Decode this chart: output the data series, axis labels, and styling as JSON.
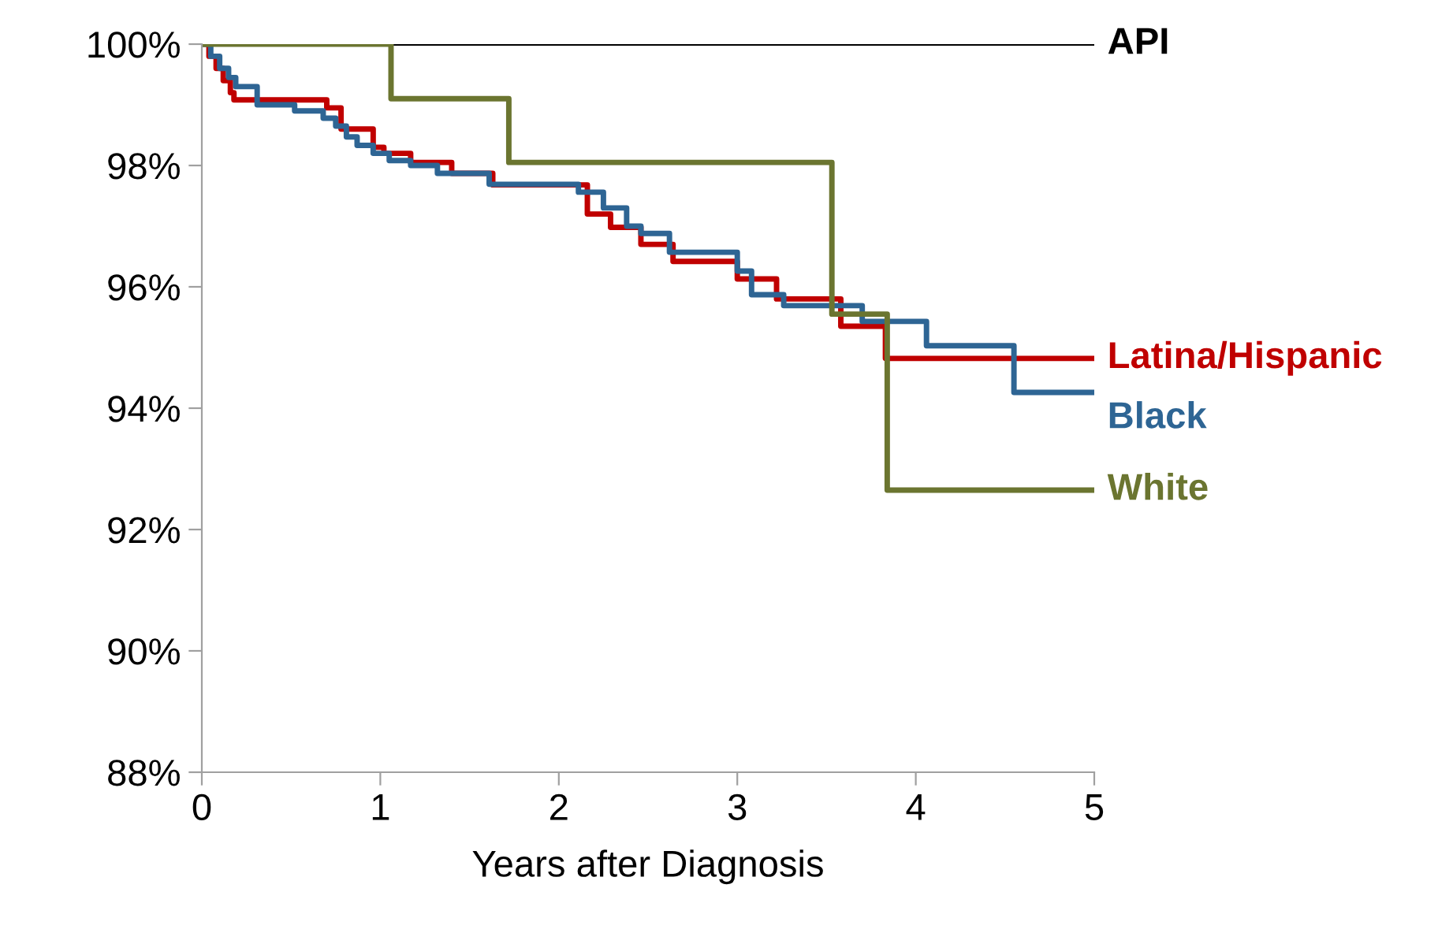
{
  "chart_data": {
    "type": "step",
    "xlabel": "Years after Diagnosis",
    "xlim": [
      0,
      5
    ],
    "xticks": [
      0,
      1,
      2,
      3,
      4,
      5
    ],
    "ylim": [
      88,
      100
    ],
    "yticks": [
      {
        "value": 88,
        "label": "88%"
      },
      {
        "value": 90,
        "label": "90%"
      },
      {
        "value": 92,
        "label": "92%"
      },
      {
        "value": 94,
        "label": "94%"
      },
      {
        "value": 96,
        "label": "96%"
      },
      {
        "value": 98,
        "label": "98%"
      },
      {
        "value": 100,
        "label": "100%"
      }
    ],
    "grid": false,
    "legend": false,
    "series": [
      {
        "name": "API",
        "color": "#000000",
        "x": [
          0,
          5
        ],
        "values": [
          100,
          100
        ]
      },
      {
        "name": "Latina/Hispanic",
        "color": "#c00000",
        "x": [
          0,
          0.04,
          0.08,
          0.12,
          0.16,
          0.18,
          0.7,
          0.78,
          0.96,
          1.02,
          1.17,
          1.4,
          1.63,
          2.16,
          2.29,
          2.46,
          2.64,
          3.0,
          3.22,
          3.58,
          3.83,
          5
        ],
        "values": [
          100,
          99.8,
          99.6,
          99.4,
          99.2,
          99.08,
          98.95,
          98.6,
          98.3,
          98.2,
          98.05,
          97.87,
          97.68,
          97.2,
          96.98,
          96.7,
          96.42,
          96.13,
          95.8,
          95.35,
          94.82,
          94.82
        ]
      },
      {
        "name": "Black",
        "color": "#2e6594",
        "x": [
          0,
          0.05,
          0.1,
          0.15,
          0.19,
          0.31,
          0.52,
          0.68,
          0.75,
          0.81,
          0.87,
          0.96,
          1.05,
          1.17,
          1.32,
          1.61,
          2.11,
          2.25,
          2.38,
          2.46,
          2.62,
          3.0,
          3.08,
          3.26,
          3.7,
          4.06,
          4.55,
          5
        ],
        "values": [
          100,
          99.8,
          99.6,
          99.45,
          99.3,
          99.0,
          98.9,
          98.78,
          98.65,
          98.47,
          98.33,
          98.2,
          98.08,
          98.0,
          97.87,
          97.69,
          97.56,
          97.3,
          97.0,
          96.88,
          96.57,
          96.26,
          95.87,
          95.69,
          95.43,
          95.03,
          94.26,
          94.26
        ]
      },
      {
        "name": "White",
        "color": "#6b7530",
        "x": [
          0,
          1.06,
          1.72,
          3.53,
          3.84,
          5
        ],
        "values": [
          100,
          99.1,
          98.05,
          95.55,
          92.65,
          92.65
        ]
      }
    ]
  }
}
